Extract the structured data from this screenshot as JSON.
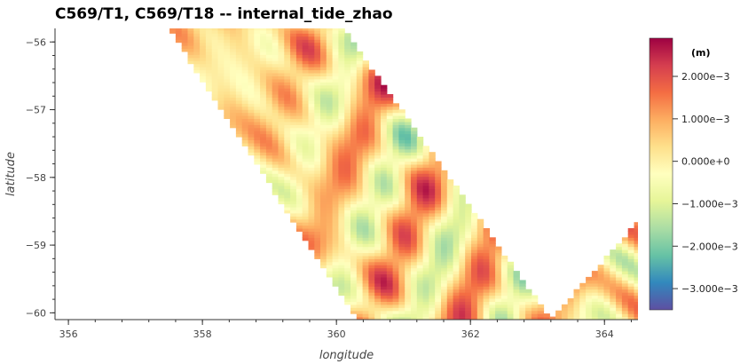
{
  "chart_data": {
    "type": "heatmap",
    "title": "C569/T1, C569/T18 -- internal_tide_zhao",
    "xlabel": "longitude",
    "ylabel": "latitude",
    "xlim": [
      355.8,
      364.5
    ],
    "ylim": [
      -60.1,
      -55.8
    ],
    "x_ticks": [
      356,
      358,
      360,
      362,
      364
    ],
    "y_ticks": [
      -56,
      -57,
      -58,
      -59,
      -60
    ],
    "swaths": [
      {
        "name": "C569/T1",
        "corners_lonlat": [
          [
            357.5,
            -55.8
          ],
          [
            360.1,
            -55.8
          ],
          [
            363.2,
            -60.1
          ],
          [
            360.3,
            -60.1
          ]
        ]
      },
      {
        "name": "C569/T18",
        "corners_lonlat": [
          [
            363.2,
            -60.1
          ],
          [
            364.5,
            -58.65
          ],
          [
            364.5,
            -60.1
          ]
        ]
      }
    ],
    "colorbar": {
      "unit": "(m)",
      "range": [
        -0.0035,
        0.0029
      ],
      "ticks": [
        {
          "value": 0.002,
          "label": "2.000e−3"
        },
        {
          "value": 0.001,
          "label": "1.000e−3"
        },
        {
          "value": 0.0,
          "label": "0.000e+0"
        },
        {
          "value": -0.001,
          "label": "−1.000e−3"
        },
        {
          "value": -0.002,
          "label": "−2.000e−3"
        },
        {
          "value": -0.003,
          "label": "−3.000e−3"
        }
      ],
      "colormap": "Spectral_r",
      "colors": [
        "#5e4fa2",
        "#3288bd",
        "#66c2a5",
        "#abdda4",
        "#e6f598",
        "#ffffbf",
        "#fee08b",
        "#fdae61",
        "#f46d43",
        "#d53e4f",
        "#9e0142"
      ]
    },
    "grid": false
  }
}
